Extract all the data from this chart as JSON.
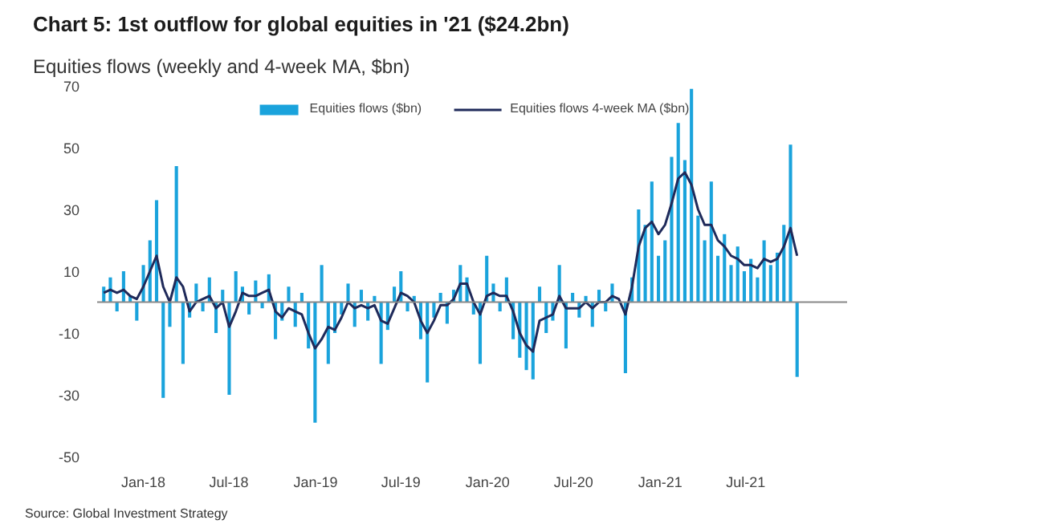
{
  "chart_data": {
    "type": "bar",
    "title": "Chart 5: 1st outflow for global equities in '21 ($24.2bn)",
    "subtitle": "Equities flows (weekly and 4-week MA, $bn)",
    "annotations": [
      "Source: Global Investment Strategy"
    ],
    "x": [
      "2017-10-09",
      "2017-10-23",
      "2017-11-06",
      "2017-11-20",
      "2017-12-04",
      "2017-12-18",
      "2018-01-01",
      "2018-01-15",
      "2018-01-29",
      "2018-02-12",
      "2018-02-26",
      "2018-03-12",
      "2018-03-26",
      "2018-04-09",
      "2018-04-23",
      "2018-05-07",
      "2018-05-21",
      "2018-06-04",
      "2018-06-18",
      "2018-07-02",
      "2018-07-16",
      "2018-07-30",
      "2018-08-13",
      "2018-08-27",
      "2018-09-10",
      "2018-09-24",
      "2018-10-08",
      "2018-10-22",
      "2018-11-05",
      "2018-11-19",
      "2018-12-03",
      "2018-12-17",
      "2018-12-31",
      "2019-01-14",
      "2019-01-28",
      "2019-02-11",
      "2019-02-25",
      "2019-03-11",
      "2019-03-25",
      "2019-04-08",
      "2019-04-22",
      "2019-05-06",
      "2019-05-20",
      "2019-06-03",
      "2019-06-17",
      "2019-07-01",
      "2019-07-15",
      "2019-07-29",
      "2019-08-12",
      "2019-08-26",
      "2019-09-09",
      "2019-09-23",
      "2019-10-07",
      "2019-10-21",
      "2019-11-04",
      "2019-11-18",
      "2019-12-02",
      "2019-12-16",
      "2019-12-30",
      "2020-01-13",
      "2020-01-27",
      "2020-02-10",
      "2020-02-24",
      "2020-03-09",
      "2020-03-23",
      "2020-04-06",
      "2020-04-20",
      "2020-05-04",
      "2020-05-18",
      "2020-06-01",
      "2020-06-15",
      "2020-06-29",
      "2020-07-13",
      "2020-07-27",
      "2020-08-10",
      "2020-08-24",
      "2020-09-07",
      "2020-09-21",
      "2020-10-05",
      "2020-10-19",
      "2020-11-02",
      "2020-11-16",
      "2020-11-30",
      "2020-12-14",
      "2020-12-28",
      "2021-01-11",
      "2021-01-25",
      "2021-02-08",
      "2021-02-22",
      "2021-03-08",
      "2021-03-22",
      "2021-04-05",
      "2021-04-19",
      "2021-05-03",
      "2021-05-17",
      "2021-05-31",
      "2021-06-14",
      "2021-06-28",
      "2021-07-12",
      "2021-07-26",
      "2021-08-09",
      "2021-08-23",
      "2021-09-06",
      "2021-09-20",
      "2021-10-04",
      "2021-10-18"
    ],
    "series": [
      {
        "name": "Equities flows ($bn)",
        "color": "#1aa3dc",
        "values": [
          5,
          8,
          -3,
          10,
          2,
          -6,
          12,
          20,
          33,
          -31,
          -8,
          44,
          -20,
          -5,
          6,
          -3,
          8,
          -10,
          4,
          -30,
          10,
          5,
          -4,
          7,
          -2,
          9,
          -12,
          -6,
          5,
          -8,
          3,
          -15,
          -39,
          12,
          -20,
          -10,
          -4,
          6,
          -8,
          4,
          -6,
          2,
          -20,
          -9,
          5,
          10,
          -3,
          2,
          -12,
          -26,
          -5,
          3,
          -7,
          4,
          12,
          8,
          -4,
          -20,
          15,
          6,
          -3,
          8,
          -12,
          -18,
          -22,
          -25,
          5,
          -10,
          -6,
          12,
          -15,
          3,
          -5,
          2,
          -8,
          4,
          -3,
          6,
          null,
          -23,
          8,
          30,
          25,
          39,
          15,
          20,
          47,
          58,
          46,
          69,
          28,
          20,
          39,
          15,
          22,
          12,
          18,
          10,
          14,
          8,
          20,
          12,
          16,
          25,
          51,
          -24.2
        ]
      },
      {
        "name": "Equities flows 4-week MA ($bn)",
        "type": "line",
        "color": "#1f2a5a",
        "values": [
          3,
          4,
          3,
          4,
          2,
          1,
          5,
          10,
          15,
          5,
          0,
          8,
          5,
          -3,
          0,
          1,
          2,
          -2,
          0,
          -8,
          -3,
          3,
          2,
          2,
          3,
          4,
          -3,
          -5,
          -2,
          -3,
          -4,
          -10,
          -15,
          -12,
          -8,
          -9,
          -5,
          0,
          -2,
          -1,
          -2,
          -1,
          -6,
          -7,
          -2,
          3,
          2,
          0,
          -6,
          -10,
          -6,
          -1,
          -1,
          1,
          6,
          6,
          0,
          -4,
          2,
          3,
          2,
          2,
          -3,
          -10,
          -14,
          -16,
          -6,
          -5,
          -4,
          2,
          -2,
          -2,
          -2,
          0,
          -2,
          0,
          0,
          2,
          1,
          -4,
          5,
          18,
          24,
          26,
          22,
          25,
          32,
          40,
          42,
          38,
          30,
          25,
          25,
          20,
          18,
          15,
          14,
          12,
          12,
          11,
          14,
          13,
          14,
          18,
          24,
          15
        ]
      }
    ],
    "ref_lines": [
      {
        "axis": "y",
        "value": 0,
        "color": "#888888"
      }
    ],
    "xlim": [
      "2017-09-25",
      "2022-02-01"
    ],
    "xticks": [
      {
        "value": "2018-01-01",
        "label": "Jan-18"
      },
      {
        "value": "2018-07-01",
        "label": "Jul-18"
      },
      {
        "value": "2019-01-01",
        "label": "Jan-19"
      },
      {
        "value": "2019-07-01",
        "label": "Jul-19"
      },
      {
        "value": "2020-01-01",
        "label": "Jan-20"
      },
      {
        "value": "2020-07-01",
        "label": "Jul-20"
      },
      {
        "value": "2021-01-01",
        "label": "Jan-21"
      },
      {
        "value": "2021-07-01",
        "label": "Jul-21"
      }
    ],
    "ylim": [
      -50,
      70
    ],
    "yticks": [
      -50,
      -30,
      -10,
      10,
      30,
      50,
      70
    ],
    "grid": false,
    "legend": "top"
  }
}
